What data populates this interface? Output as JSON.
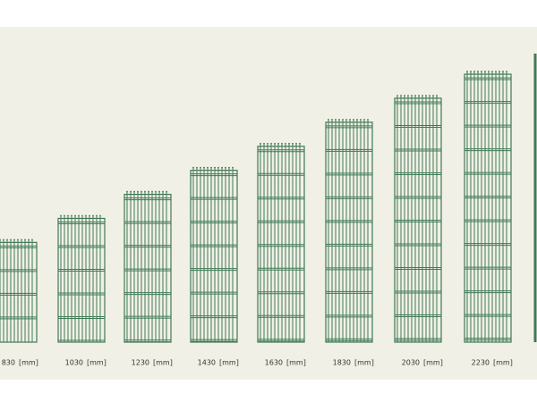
{
  "panels": [
    {
      "height": 830,
      "unit": "[mm]"
    },
    {
      "height": 1030,
      "unit": "[mm]"
    },
    {
      "height": 1230,
      "unit": "[mm]"
    },
    {
      "height": 1430,
      "unit": "[mm]"
    },
    {
      "height": 1630,
      "unit": "[mm]"
    },
    {
      "height": 1830,
      "unit": "[mm]"
    },
    {
      "height": 2030,
      "unit": "[mm]"
    },
    {
      "height": 2230,
      "unit": "[mm]"
    }
  ]
}
